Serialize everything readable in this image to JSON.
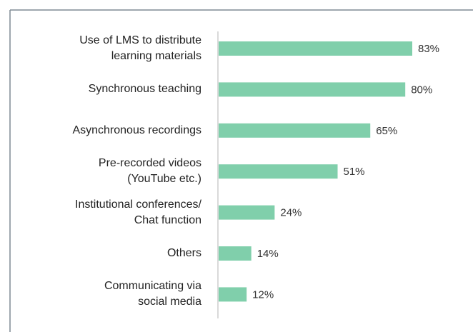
{
  "chart_data": {
    "type": "bar",
    "orientation": "horizontal",
    "categories": [
      "Use of LMS to distribute\nlearning materials",
      "Synchronous teaching",
      "Asynchronous recordings",
      "Pre-recorded videos\n(YouTube etc.)",
      "Institutional conferences/\nChat function",
      "Others",
      "Communicating via\nsocial media"
    ],
    "values": [
      83,
      80,
      65,
      51,
      24,
      14,
      12
    ],
    "value_labels": [
      "83%",
      "80%",
      "65%",
      "51%",
      "24%",
      "14%",
      "12%"
    ],
    "color": "#80cfab"
  }
}
